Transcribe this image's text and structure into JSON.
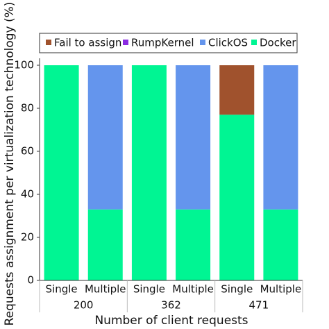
{
  "chart_data": {
    "type": "stacked-bar",
    "x_label": "Number of client requests",
    "y_label": "Requests assignment per virtualization technology (%)",
    "categories": [
      "Single",
      "Multiple",
      "Single",
      "Multiple",
      "Single",
      "Multiple"
    ],
    "groups": [
      "200",
      "362",
      "471"
    ],
    "series": [
      {
        "name": "Docker",
        "color": "#00f593",
        "values": [
          100,
          33,
          100,
          33,
          77,
          33
        ]
      },
      {
        "name": "ClickOS",
        "color": "#6495ed",
        "values": [
          0,
          67,
          0,
          67,
          0,
          67
        ]
      },
      {
        "name": "RumpKernel",
        "color": "#8a2be2",
        "values": [
          0,
          0,
          0,
          0,
          0,
          0
        ]
      },
      {
        "name": "Fail to assign",
        "color": "#a0522d",
        "values": [
          0,
          0,
          0,
          0,
          23,
          0
        ]
      }
    ],
    "ylim": [
      0,
      100
    ],
    "yticks": [
      0,
      20,
      40,
      60,
      80,
      100
    ]
  }
}
